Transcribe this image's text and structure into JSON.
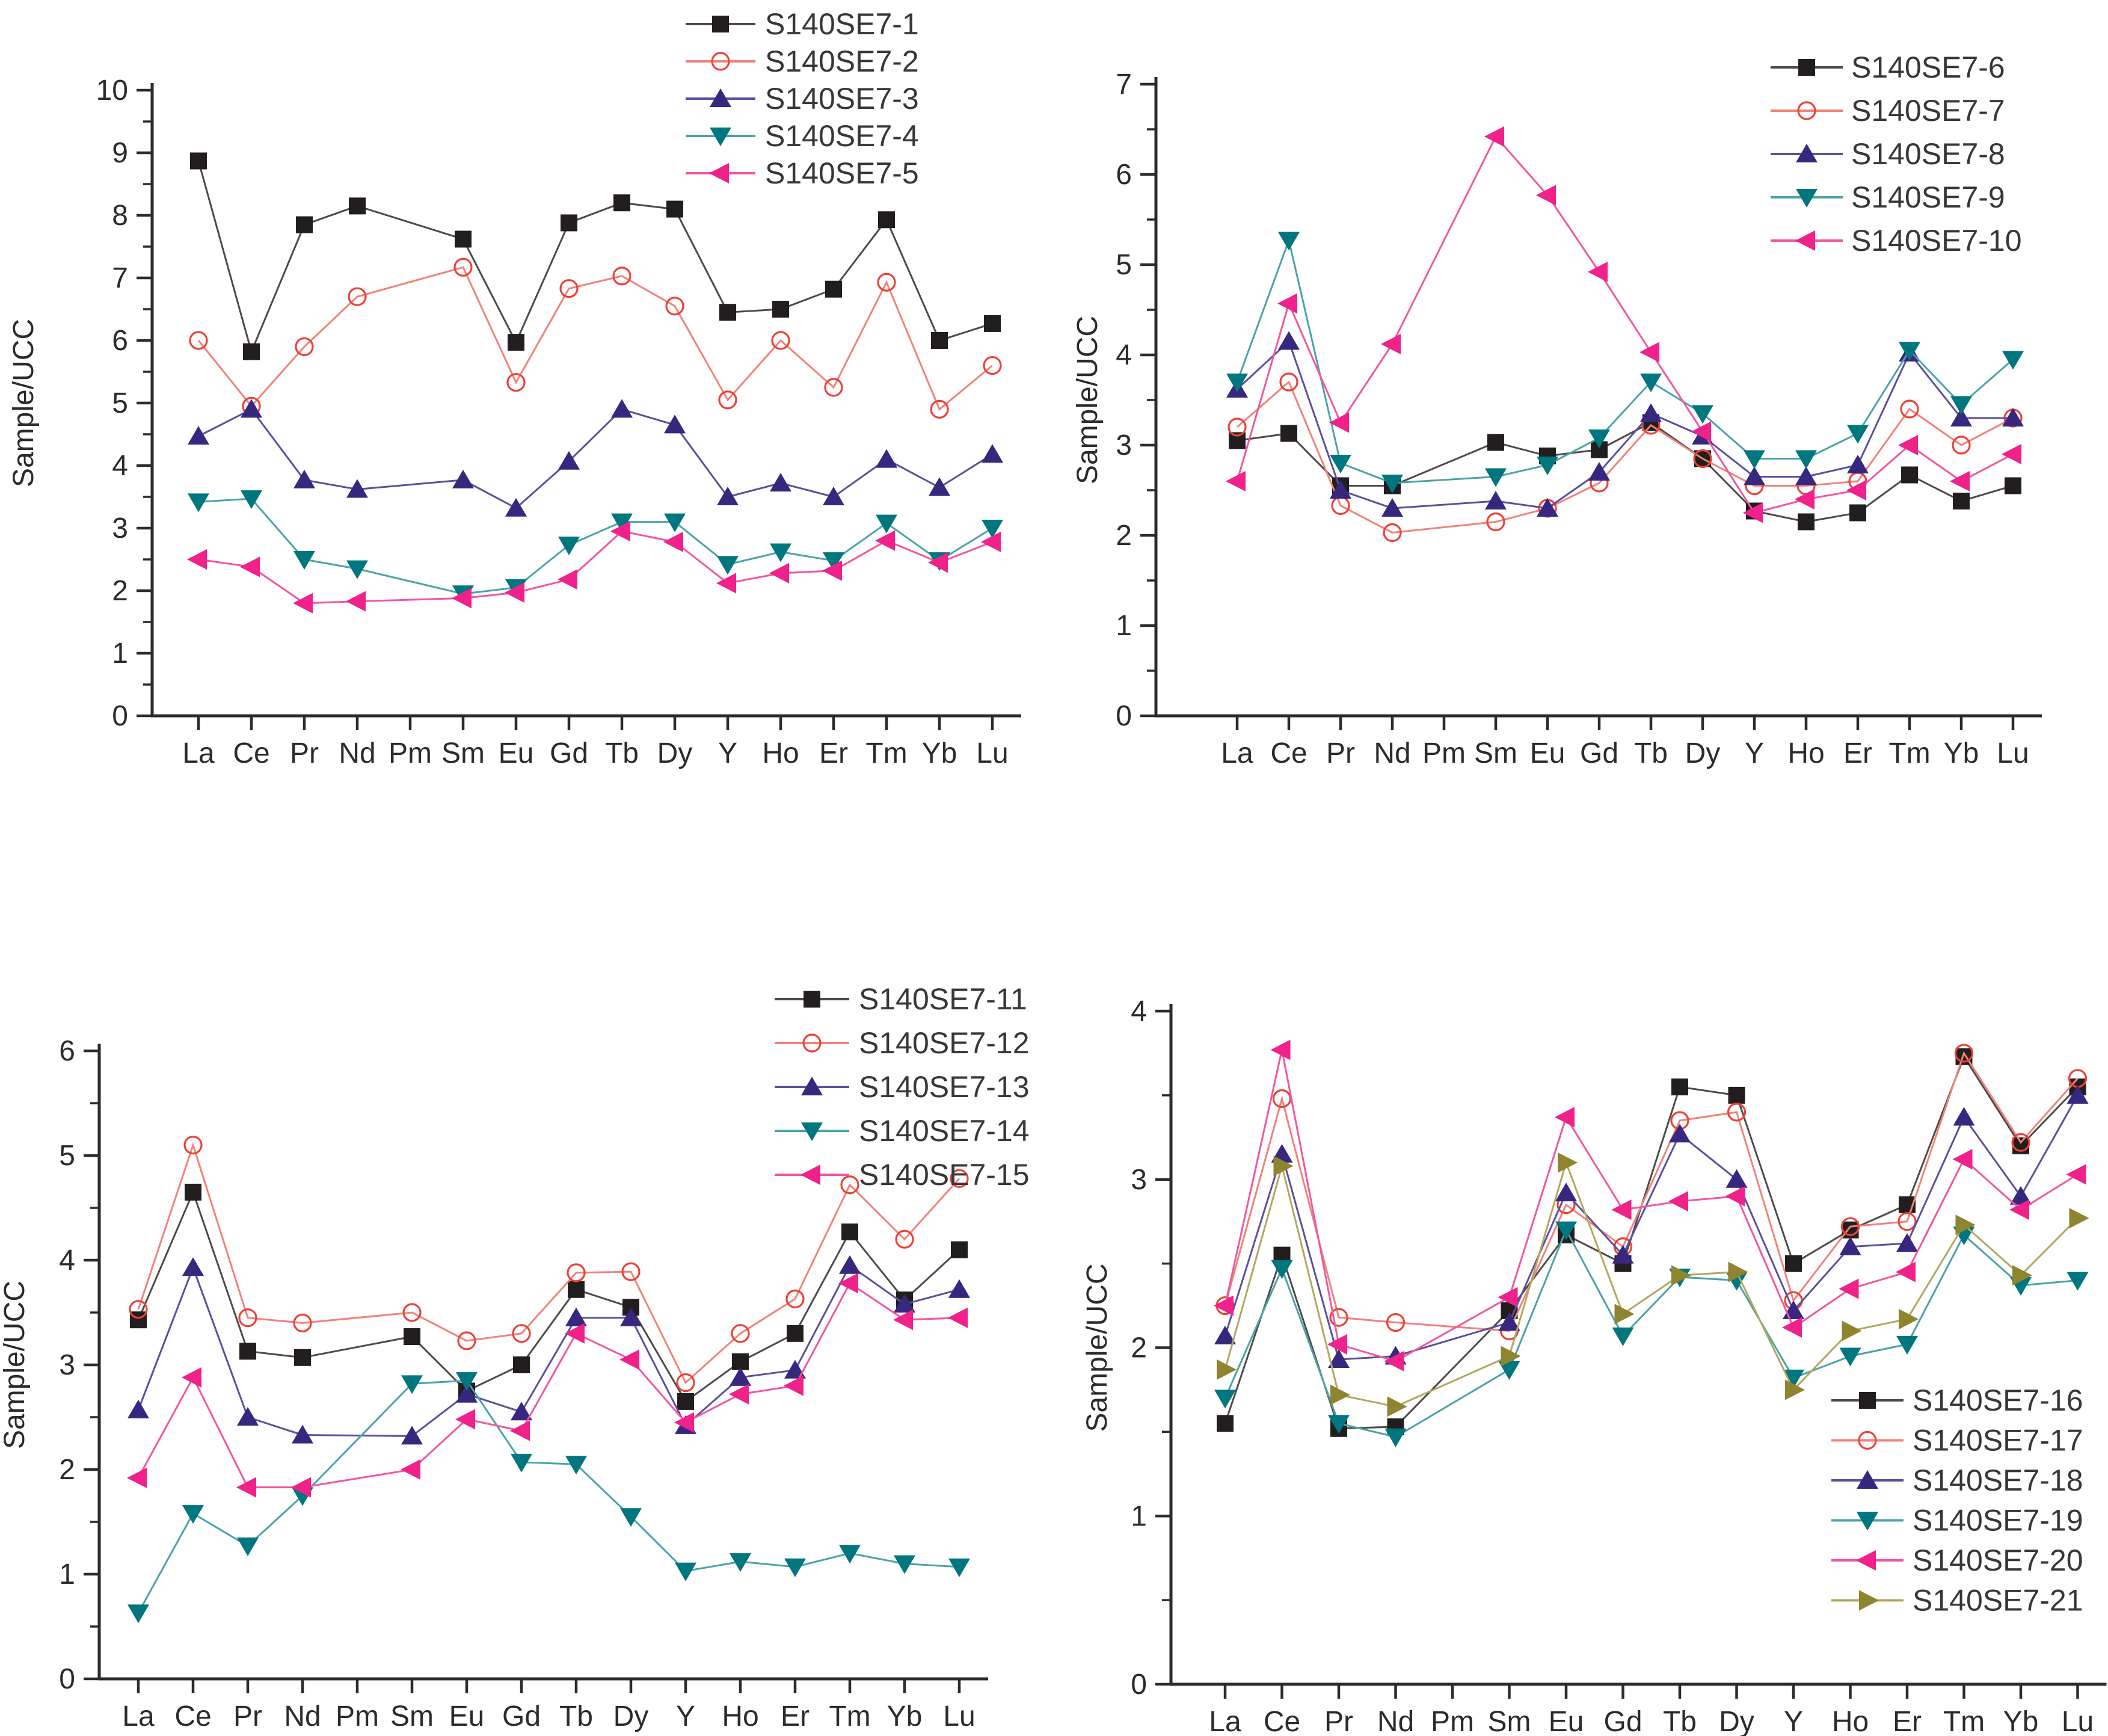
{
  "figure": {
    "ylabel": "Sample/UCC",
    "categories": [
      "La",
      "Ce",
      "Pr",
      "Nd",
      "Pm",
      "Sm",
      "Eu",
      "Gd",
      "Tb",
      "Dy",
      "Y",
      "Ho",
      "Er",
      "Tm",
      "Yb",
      "Lu"
    ]
  },
  "chart_data": [
    {
      "type": "line",
      "position": "top-left",
      "title": "",
      "xlabel": "",
      "ylabel": "Sample/UCC",
      "ylim": [
        0,
        10
      ],
      "ytick_step": 1,
      "yminor_step": 0.5,
      "grid": false,
      "legend_position": "top-right",
      "categories": [
        "La",
        "Ce",
        "Pr",
        "Nd",
        "Pm",
        "Sm",
        "Eu",
        "Gd",
        "Tb",
        "Dy",
        "Y",
        "Ho",
        "Er",
        "Tm",
        "Yb",
        "Lu"
      ],
      "series": [
        {
          "name": "S140SE7-1",
          "marker": "square",
          "color": "#221e1f",
          "line_color": "#4d4a4b",
          "values": [
            8.87,
            5.82,
            7.85,
            8.15,
            null,
            7.62,
            5.97,
            7.88,
            8.2,
            8.1,
            6.45,
            6.5,
            6.82,
            7.93,
            6.0,
            6.27
          ]
        },
        {
          "name": "S140SE7-2",
          "marker": "circle-open",
          "color": "#ee4136",
          "line_color": "#f0837a",
          "values": [
            6.0,
            4.95,
            5.9,
            6.7,
            null,
            7.17,
            5.33,
            6.83,
            7.03,
            6.55,
            5.05,
            6.0,
            5.25,
            6.93,
            4.9,
            5.6
          ]
        },
        {
          "name": "S140SE7-3",
          "marker": "triangle-up",
          "color": "#38277f",
          "line_color": "#5a4f9e",
          "values": [
            4.47,
            4.9,
            3.77,
            3.62,
            null,
            3.77,
            3.32,
            4.07,
            4.9,
            4.65,
            3.5,
            3.72,
            3.5,
            4.1,
            3.65,
            4.18
          ]
        },
        {
          "name": "S140SE7-4",
          "marker": "triangle-down",
          "color": "#00767e",
          "line_color": "#4aa3a9",
          "values": [
            3.42,
            3.47,
            2.5,
            2.35,
            null,
            1.95,
            2.05,
            2.73,
            3.1,
            3.1,
            2.42,
            2.62,
            2.48,
            3.08,
            2.48,
            3.0
          ]
        },
        {
          "name": "S140SE7-5",
          "marker": "triangle-left",
          "color": "#f0218b",
          "line_color": "#f2569f",
          "values": [
            2.5,
            2.38,
            1.8,
            1.83,
            null,
            1.88,
            1.97,
            2.18,
            2.95,
            2.78,
            2.12,
            2.28,
            2.32,
            2.8,
            2.45,
            2.78
          ]
        }
      ]
    },
    {
      "type": "line",
      "position": "top-right",
      "title": "",
      "xlabel": "",
      "ylabel": "Sample/UCC",
      "ylim": [
        0,
        7
      ],
      "ytick_step": 1,
      "yminor_step": 0.5,
      "grid": false,
      "legend_position": "top-right",
      "categories": [
        "La",
        "Ce",
        "Pr",
        "Nd",
        "Pm",
        "Sm",
        "Eu",
        "Gd",
        "Tb",
        "Dy",
        "Y",
        "Ho",
        "Er",
        "Tm",
        "Yb",
        "Lu"
      ],
      "series": [
        {
          "name": "S140SE7-6",
          "marker": "square",
          "color": "#221e1f",
          "line_color": "#4d4a4b",
          "values": [
            3.05,
            3.13,
            2.55,
            2.55,
            null,
            3.03,
            2.88,
            2.95,
            3.25,
            2.85,
            2.27,
            2.15,
            2.25,
            2.67,
            2.38,
            2.55
          ]
        },
        {
          "name": "S140SE7-7",
          "marker": "circle-open",
          "color": "#ee4136",
          "line_color": "#f0837a",
          "values": [
            3.2,
            3.7,
            2.33,
            2.03,
            null,
            2.15,
            2.3,
            2.58,
            3.22,
            2.85,
            2.55,
            2.55,
            2.6,
            3.4,
            3.0,
            3.3
          ]
        },
        {
          "name": "S140SE7-8",
          "marker": "triangle-up",
          "color": "#38277f",
          "line_color": "#5a4f9e",
          "values": [
            3.62,
            4.15,
            2.5,
            2.3,
            null,
            2.38,
            2.3,
            2.7,
            3.35,
            3.1,
            2.65,
            2.65,
            2.78,
            4.02,
            3.3,
            3.3
          ]
        },
        {
          "name": "S140SE7-9",
          "marker": "triangle-down",
          "color": "#00767e",
          "line_color": "#4aa3a9",
          "values": [
            3.7,
            5.27,
            2.8,
            2.58,
            null,
            2.65,
            2.78,
            3.08,
            3.7,
            3.35,
            2.85,
            2.85,
            3.13,
            4.05,
            3.45,
            3.95
          ]
        },
        {
          "name": "S140SE7-10",
          "marker": "triangle-left",
          "color": "#f0218b",
          "line_color": "#f2569f",
          "values": [
            2.6,
            4.57,
            3.25,
            4.12,
            null,
            6.42,
            5.77,
            4.92,
            4.03,
            3.15,
            2.25,
            2.4,
            2.5,
            3.0,
            2.6,
            2.9
          ]
        }
      ]
    },
    {
      "type": "line",
      "position": "bottom-left",
      "title": "",
      "xlabel": "",
      "ylabel": "Sample/UCC",
      "ylim": [
        0,
        6
      ],
      "ytick_step": 1,
      "yminor_step": 0.5,
      "grid": false,
      "legend_position": "top-right",
      "categories": [
        "La",
        "Ce",
        "Pr",
        "Nd",
        "Pm",
        "Sm",
        "Eu",
        "Gd",
        "Tb",
        "Dy",
        "Y",
        "Ho",
        "Er",
        "Tm",
        "Yb",
        "Lu"
      ],
      "series": [
        {
          "name": "S140SE7-11",
          "marker": "square",
          "color": "#221e1f",
          "line_color": "#4d4a4b",
          "values": [
            3.43,
            4.65,
            3.13,
            3.07,
            null,
            3.27,
            2.75,
            3.0,
            3.72,
            3.55,
            2.65,
            3.03,
            3.3,
            4.27,
            3.62,
            4.1
          ]
        },
        {
          "name": "S140SE7-12",
          "marker": "circle-open",
          "color": "#ee4136",
          "line_color": "#f0837a",
          "values": [
            3.53,
            5.1,
            3.45,
            3.4,
            null,
            3.5,
            3.23,
            3.3,
            3.88,
            3.89,
            2.83,
            3.3,
            3.63,
            4.72,
            4.2,
            4.78
          ]
        },
        {
          "name": "S140SE7-13",
          "marker": "triangle-up",
          "color": "#38277f",
          "line_color": "#5a4f9e",
          "values": [
            2.57,
            3.93,
            2.5,
            2.33,
            null,
            2.32,
            2.72,
            2.55,
            3.45,
            3.45,
            2.42,
            2.88,
            2.95,
            3.95,
            3.58,
            3.72
          ]
        },
        {
          "name": "S140SE7-14",
          "marker": "triangle-down",
          "color": "#00767e",
          "line_color": "#4aa3a9",
          "values": [
            0.63,
            1.58,
            1.27,
            1.75,
            null,
            2.82,
            2.85,
            2.07,
            2.05,
            1.55,
            1.03,
            1.12,
            1.07,
            1.2,
            1.1,
            1.07
          ]
        },
        {
          "name": "S140SE7-15",
          "marker": "triangle-left",
          "color": "#f0218b",
          "line_color": "#f2569f",
          "values": [
            1.92,
            2.88,
            1.83,
            1.83,
            null,
            2.0,
            2.48,
            2.37,
            3.3,
            3.05,
            2.45,
            2.72,
            2.8,
            3.78,
            3.43,
            3.45
          ]
        }
      ]
    },
    {
      "type": "line",
      "position": "bottom-right",
      "title": "",
      "xlabel": "",
      "ylabel": "Sample/UCC",
      "ylim": [
        0,
        4
      ],
      "ytick_step": 1,
      "yminor_step": 0.5,
      "grid": false,
      "legend_position": "bottom-right",
      "categories": [
        "La",
        "Ce",
        "Pr",
        "Nd",
        "Pm",
        "Sm",
        "Eu",
        "Gd",
        "Tb",
        "Dy",
        "Y",
        "Ho",
        "Er",
        "Tm",
        "Yb",
        "Lu"
      ],
      "series": [
        {
          "name": "S140SE7-16",
          "marker": "square",
          "color": "#221e1f",
          "line_color": "#4d4a4b",
          "values": [
            1.55,
            2.55,
            1.52,
            1.53,
            null,
            2.22,
            2.67,
            2.5,
            3.55,
            3.5,
            2.5,
            2.7,
            2.85,
            3.73,
            3.2,
            3.55
          ]
        },
        {
          "name": "S140SE7-17",
          "marker": "circle-open",
          "color": "#ee4136",
          "line_color": "#f0837a",
          "values": [
            2.25,
            3.48,
            2.18,
            2.15,
            null,
            2.1,
            2.85,
            2.6,
            3.35,
            3.4,
            2.28,
            2.72,
            2.75,
            3.75,
            3.22,
            3.6
          ]
        },
        {
          "name": "S140SE7-18",
          "marker": "triangle-up",
          "color": "#38277f",
          "line_color": "#5a4f9e",
          "values": [
            2.07,
            3.15,
            1.93,
            1.95,
            null,
            2.15,
            2.92,
            2.55,
            3.27,
            3.0,
            2.22,
            2.6,
            2.62,
            3.37,
            2.9,
            3.5
          ]
        },
        {
          "name": "S140SE7-19",
          "marker": "triangle-down",
          "color": "#00767e",
          "line_color": "#4aa3a9",
          "values": [
            1.7,
            2.47,
            1.55,
            1.47,
            null,
            1.87,
            2.7,
            2.07,
            2.42,
            2.4,
            1.82,
            1.95,
            2.02,
            2.67,
            2.37,
            2.4
          ]
        },
        {
          "name": "S140SE7-20",
          "marker": "triangle-left",
          "color": "#f0218b",
          "line_color": "#f2569f",
          "values": [
            2.25,
            3.77,
            2.02,
            1.92,
            null,
            2.3,
            3.37,
            2.82,
            2.87,
            2.9,
            2.12,
            2.35,
            2.45,
            3.12,
            2.82,
            3.03
          ]
        },
        {
          "name": "S140SE7-21",
          "marker": "triangle-right",
          "color": "#8f8430",
          "line_color": "#b0a85e",
          "values": [
            1.87,
            3.08,
            1.72,
            1.65,
            null,
            1.95,
            3.1,
            2.2,
            2.43,
            2.45,
            1.75,
            2.1,
            2.17,
            2.73,
            2.43,
            2.77
          ]
        }
      ]
    }
  ]
}
